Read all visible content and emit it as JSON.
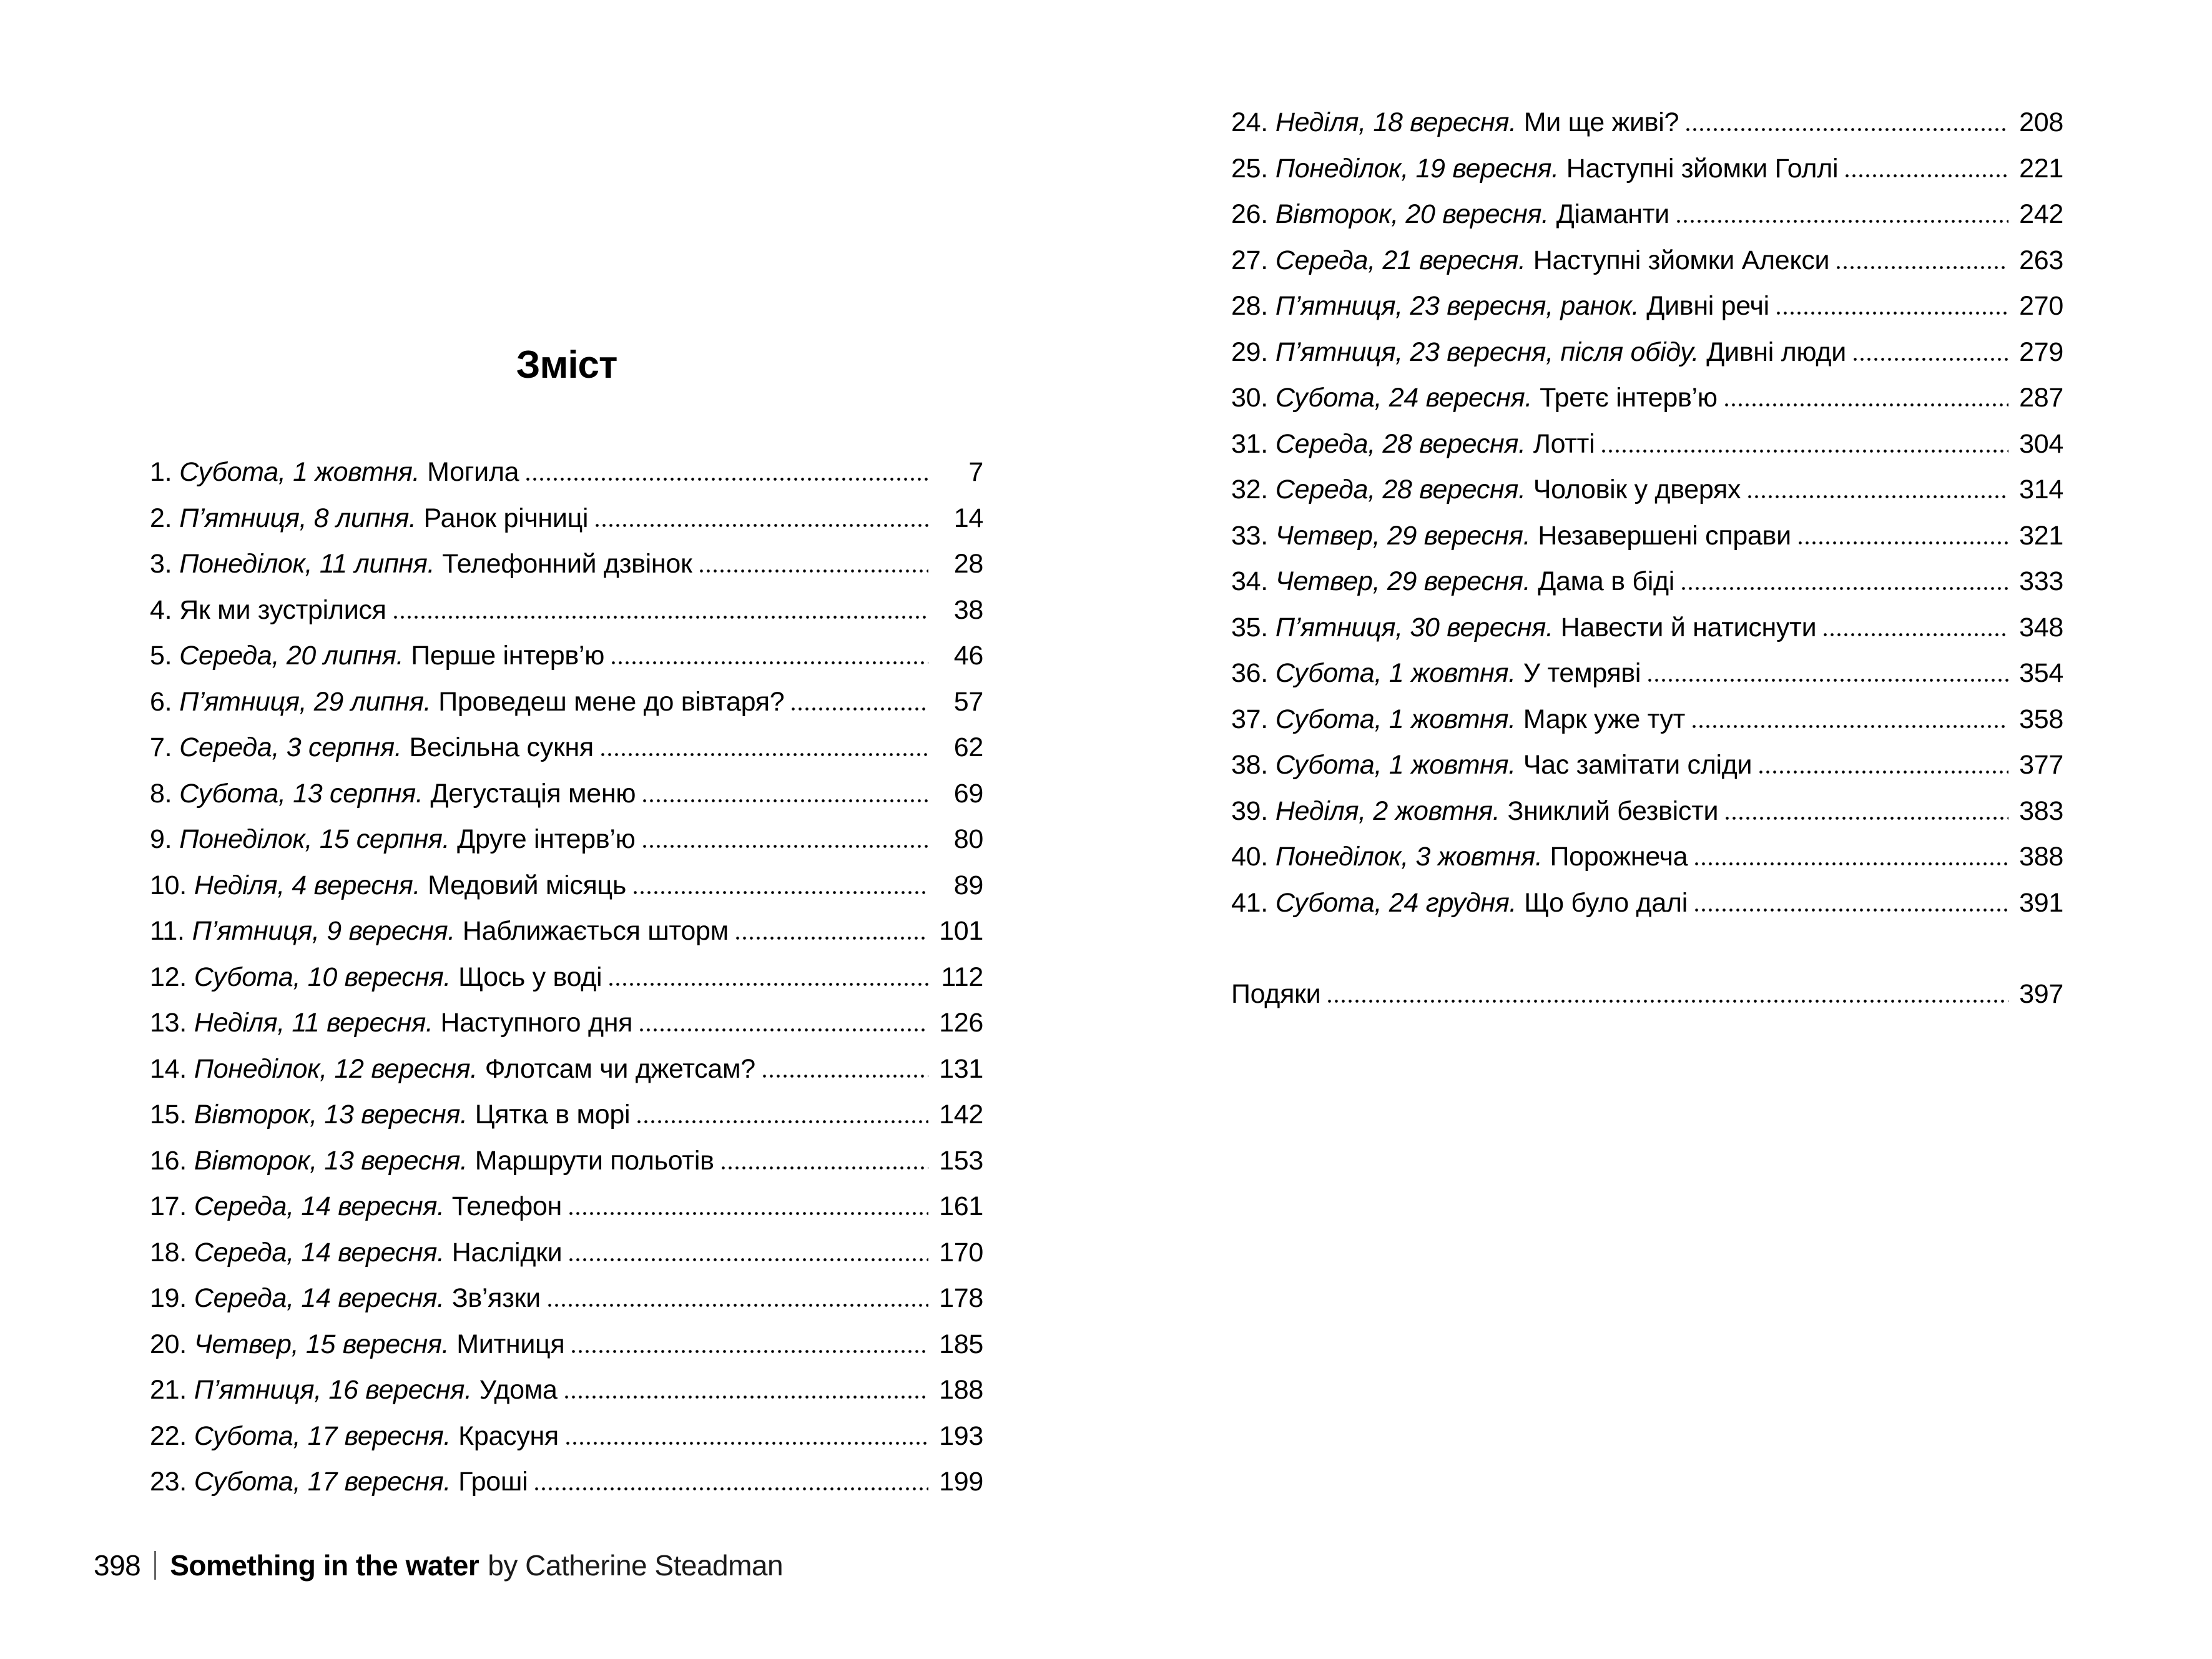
{
  "page": {
    "title": "Зміст",
    "footer": {
      "page_number": "398",
      "book_title": "Something in the water",
      "byline": "by Catherine Steadman"
    }
  },
  "toc": {
    "left": [
      {
        "num": "1.",
        "date": "Субота, 1 жовтня.",
        "title": "Могила",
        "page": "7"
      },
      {
        "num": "2.",
        "date": "П’ятниця, 8 липня.",
        "title": "Ранок річниці",
        "page": "14"
      },
      {
        "num": "3.",
        "date": "Понеділок, 11 липня.",
        "title": "Телефонний дзвінок",
        "page": "28"
      },
      {
        "num": "4.",
        "date": "",
        "title": "Як ми зустрілися",
        "page": "38"
      },
      {
        "num": "5.",
        "date": "Середа, 20 липня.",
        "title": "Перше інтерв’ю",
        "page": "46"
      },
      {
        "num": "6.",
        "date": "П’ятниця, 29 липня.",
        "title": "Проведеш мене до вівтаря?",
        "page": "57"
      },
      {
        "num": "7.",
        "date": "Середа, 3 серпня.",
        "title": "Весільна сукня",
        "page": "62"
      },
      {
        "num": "8.",
        "date": "Субота, 13 серпня.",
        "title": "Дегустація меню",
        "page": "69"
      },
      {
        "num": "9.",
        "date": "Понеділок, 15 серпня.",
        "title": "Друге інтерв’ю",
        "page": "80"
      },
      {
        "num": "10.",
        "date": "Неділя, 4 вересня.",
        "title": "Медовий місяць",
        "page": "89"
      },
      {
        "num": "11.",
        "date": "П’ятниця, 9 вересня.",
        "title": "Наближається шторм",
        "page": "101"
      },
      {
        "num": "12.",
        "date": "Субота, 10 вересня.",
        "title": "Щось у воді",
        "page": "112"
      },
      {
        "num": "13.",
        "date": "Неділя, 11 вересня.",
        "title": "Наступного дня",
        "page": "126"
      },
      {
        "num": "14.",
        "date": "Понеділок, 12 вересня.",
        "title": "Флотсам чи джетсам?",
        "page": "131"
      },
      {
        "num": "15.",
        "date": "Вівторок, 13 вересня.",
        "title": "Цятка в морі",
        "page": "142"
      },
      {
        "num": "16.",
        "date": "Вівторок, 13 вересня.",
        "title": "Маршрути польотів",
        "page": "153"
      },
      {
        "num": "17.",
        "date": "Середа, 14 вересня.",
        "title": "Телефон",
        "page": "161"
      },
      {
        "num": "18.",
        "date": "Середа, 14 вересня.",
        "title": "Наслідки",
        "page": "170"
      },
      {
        "num": "19.",
        "date": "Середа, 14 вересня.",
        "title": "Зв’язки",
        "page": "178"
      },
      {
        "num": "20.",
        "date": "Четвер, 15 вересня.",
        "title": "Митниця",
        "page": "185"
      },
      {
        "num": "21.",
        "date": "П’ятниця, 16 вересня.",
        "title": "Удома",
        "page": "188"
      },
      {
        "num": "22.",
        "date": "Субота, 17 вересня.",
        "title": "Красуня",
        "page": "193"
      },
      {
        "num": "23.",
        "date": "Субота, 17 вересня.",
        "title": "Гроші",
        "page": "199"
      }
    ],
    "right": [
      {
        "num": "24.",
        "date": "Неділя, 18 вересня.",
        "title": "Ми ще живі?",
        "page": "208"
      },
      {
        "num": "25.",
        "date": "Понеділок, 19 вересня.",
        "title": "Наступні зйомки Голлі",
        "page": "221"
      },
      {
        "num": "26.",
        "date": "Вівторок, 20 вересня.",
        "title": "Діаманти",
        "page": "242"
      },
      {
        "num": "27.",
        "date": "Середа, 21 вересня.",
        "title": "Наступні зйомки Алекси",
        "page": "263"
      },
      {
        "num": "28.",
        "date": "П’ятниця, 23 вересня, ранок.",
        "title": "Дивні речі",
        "page": "270"
      },
      {
        "num": "29.",
        "date": "П’ятниця, 23 вересня, після обіду.",
        "title": "Дивні люди",
        "page": "279"
      },
      {
        "num": "30.",
        "date": "Субота, 24 вересня.",
        "title": "Третє інтерв’ю",
        "page": "287"
      },
      {
        "num": "31.",
        "date": "Середа, 28 вересня.",
        "title": "Лотті",
        "page": "304"
      },
      {
        "num": "32.",
        "date": "Середа, 28 вересня.",
        "title": "Чоловік у дверях",
        "page": "314"
      },
      {
        "num": "33.",
        "date": "Четвер, 29 вересня.",
        "title": "Незавершені справи",
        "page": "321"
      },
      {
        "num": "34.",
        "date": "Четвер, 29 вересня.",
        "title": "Дама в біді",
        "page": "333"
      },
      {
        "num": "35.",
        "date": "П’ятниця, 30 вересня.",
        "title": "Навести й натиснути",
        "page": "348"
      },
      {
        "num": "36.",
        "date": "Субота, 1 жовтня.",
        "title": "У темряві",
        "page": "354"
      },
      {
        "num": "37.",
        "date": "Субота, 1 жовтня.",
        "title": "Марк уже тут",
        "page": "358"
      },
      {
        "num": "38.",
        "date": "Субота, 1 жовтня.",
        "title": "Час замітати сліди",
        "page": "377"
      },
      {
        "num": "39.",
        "date": "Неділя, 2 жовтня.",
        "title": "Зниклий безвісти",
        "page": "383"
      },
      {
        "num": "40.",
        "date": "Понеділок, 3 жовтня.",
        "title": "Порожнеча",
        "page": "388"
      },
      {
        "num": "41.",
        "date": "Субота, 24 грудня.",
        "title": "Що було далі",
        "page": "391"
      }
    ],
    "acknowledgments": {
      "num": "",
      "date": "",
      "title": "Подяки",
      "page": "397"
    }
  }
}
